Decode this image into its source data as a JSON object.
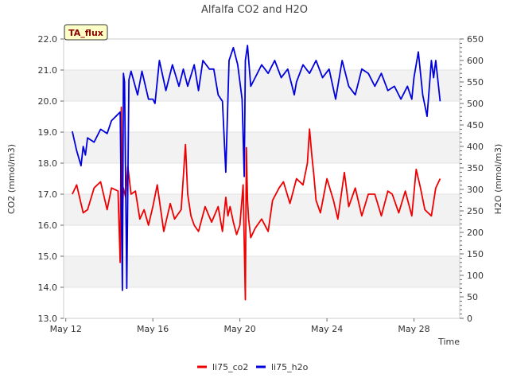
{
  "chart_data": {
    "type": "line",
    "title": "Alfalfa CO2 and H2O",
    "xlabel": "Time",
    "ylabel_left": "CO2 (mmol/m3)",
    "ylabel_right": "H2O (mmol/m3)",
    "badge": "TA_flux",
    "x_range_days": [
      11.9,
      30.1
    ],
    "x_ticks": [
      {
        "day": 12,
        "label": "May 12"
      },
      {
        "day": 16,
        "label": "May 16"
      },
      {
        "day": 20,
        "label": "May 20"
      },
      {
        "day": 24,
        "label": "May 24"
      },
      {
        "day": 28,
        "label": "May 28"
      }
    ],
    "ylim_left": [
      13.0,
      22.0
    ],
    "yticks_left": [
      "13.0",
      "14.0",
      "15.0",
      "16.0",
      "17.0",
      "18.0",
      "19.0",
      "20.0",
      "21.0",
      "22.0"
    ],
    "ylim_right": [
      0,
      650
    ],
    "yticks_right": [
      "0",
      "50",
      "100",
      "150",
      "200",
      "250",
      "300",
      "350",
      "400",
      "450",
      "500",
      "550",
      "600",
      "650"
    ],
    "grid_bands": true,
    "legend_position": "bottom-center",
    "series": [
      {
        "name": "li75_co2",
        "color": "#ee0000",
        "axis": "left",
        "x": [
          12.3,
          12.5,
          12.8,
          13.0,
          13.3,
          13.6,
          13.9,
          14.1,
          14.4,
          14.5,
          14.55,
          14.6,
          14.65,
          14.75,
          14.85,
          15.0,
          15.2,
          15.4,
          15.6,
          15.8,
          16.0,
          16.2,
          16.5,
          16.8,
          17.0,
          17.3,
          17.5,
          17.6,
          17.75,
          17.9,
          18.1,
          18.4,
          18.7,
          19.0,
          19.2,
          19.35,
          19.45,
          19.55,
          19.7,
          19.85,
          20.0,
          20.15,
          20.25,
          20.3,
          20.35,
          20.4,
          20.5,
          20.7,
          21.0,
          21.3,
          21.5,
          21.8,
          22.0,
          22.3,
          22.6,
          22.9,
          23.1,
          23.2,
          23.3,
          23.4,
          23.5,
          23.7,
          24.0,
          24.3,
          24.5,
          24.8,
          25.0,
          25.3,
          25.6,
          25.9,
          26.2,
          26.5,
          26.8,
          27.0,
          27.3,
          27.6,
          27.9,
          28.1,
          28.3,
          28.5,
          28.8,
          29.0,
          29.2
        ],
        "values": [
          17.0,
          17.3,
          16.4,
          16.5,
          17.2,
          17.4,
          16.5,
          17.2,
          17.1,
          14.8,
          19.8,
          16.4,
          17.2,
          16.9,
          17.9,
          17.0,
          17.1,
          16.2,
          16.5,
          16.0,
          16.6,
          17.3,
          15.8,
          16.7,
          16.2,
          16.5,
          18.6,
          17.0,
          16.3,
          16.0,
          15.8,
          16.6,
          16.1,
          16.6,
          15.8,
          16.9,
          16.3,
          16.6,
          16.1,
          15.7,
          16.0,
          17.3,
          13.6,
          18.5,
          16.8,
          16.2,
          15.6,
          15.9,
          16.2,
          15.8,
          16.8,
          17.2,
          17.4,
          16.7,
          17.5,
          17.3,
          18.0,
          19.1,
          18.3,
          17.6,
          16.8,
          16.4,
          17.5,
          16.8,
          16.2,
          17.7,
          16.6,
          17.2,
          16.3,
          17.0,
          17.0,
          16.3,
          17.1,
          17.0,
          16.4,
          17.1,
          16.3,
          17.8,
          17.2,
          16.5,
          16.3,
          17.2,
          17.5
        ]
      },
      {
        "name": "li75_h2o",
        "color": "#0000dd",
        "axis": "right",
        "x": [
          12.3,
          12.5,
          12.7,
          12.8,
          12.9,
          13.0,
          13.3,
          13.6,
          13.9,
          14.1,
          14.3,
          14.5,
          14.6,
          14.65,
          14.7,
          14.8,
          14.9,
          15.0,
          15.3,
          15.5,
          15.8,
          16.0,
          16.1,
          16.3,
          16.6,
          16.9,
          17.2,
          17.4,
          17.6,
          17.9,
          18.1,
          18.3,
          18.6,
          18.8,
          19.0,
          19.2,
          19.35,
          19.5,
          19.7,
          19.9,
          20.1,
          20.2,
          20.25,
          20.35,
          20.5,
          20.7,
          21.0,
          21.3,
          21.6,
          21.9,
          22.2,
          22.4,
          22.5,
          22.6,
          22.9,
          23.2,
          23.5,
          23.8,
          24.1,
          24.4,
          24.7,
          25.0,
          25.3,
          25.6,
          25.9,
          26.2,
          26.5,
          26.8,
          27.1,
          27.4,
          27.7,
          27.9,
          28.0,
          28.2,
          28.4,
          28.6,
          28.8,
          28.9,
          29.0,
          29.2
        ],
        "values": [
          435,
          390,
          355,
          400,
          380,
          420,
          410,
          440,
          430,
          460,
          470,
          480,
          65,
          570,
          550,
          70,
          555,
          575,
          520,
          575,
          510,
          510,
          500,
          600,
          530,
          590,
          540,
          580,
          540,
          590,
          530,
          600,
          580,
          580,
          520,
          505,
          340,
          600,
          630,
          590,
          510,
          330,
          600,
          635,
          540,
          560,
          590,
          570,
          600,
          560,
          580,
          540,
          520,
          550,
          590,
          570,
          600,
          560,
          580,
          510,
          600,
          540,
          520,
          580,
          570,
          540,
          570,
          530,
          540,
          510,
          540,
          510,
          560,
          620,
          520,
          470,
          600,
          560,
          600,
          505
        ]
      }
    ]
  }
}
